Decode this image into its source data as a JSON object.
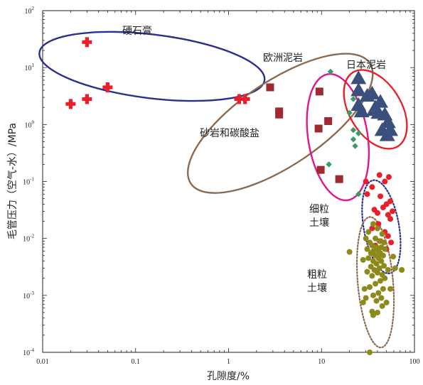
{
  "chart_data": {
    "type": "scatter",
    "title": "",
    "xlabel": "孔隙度/%",
    "ylabel": "毛管压力（空气-水）/MPa",
    "xscale": "log",
    "yscale": "log",
    "xlim": [
      0.01,
      100
    ],
    "ylim": [
      0.0001,
      100
    ],
    "x_tick_labels": [
      "0.01",
      "0.1",
      "1",
      "10",
      "100"
    ],
    "y_tick_labels": [
      {
        "base": "10",
        "exp": "2"
      },
      {
        "base": "10",
        "exp": "1"
      },
      {
        "base": "10",
        "exp": "0"
      },
      {
        "base": "10",
        "exp": "-1"
      },
      {
        "base": "10",
        "exp": "-2"
      },
      {
        "base": "10",
        "exp": "-3"
      },
      {
        "base": "10",
        "exp": "-4"
      }
    ],
    "legend": "none",
    "series": [
      {
        "name": "硬石膏",
        "label_lines": [
          "硬石膏"
        ],
        "marker": "cross",
        "color": "#e8202a",
        "points": [
          [
            0.02,
            2.3
          ],
          [
            0.03,
            28
          ],
          [
            0.03,
            2.8
          ],
          [
            0.05,
            4.5
          ],
          [
            1.3,
            2.8
          ],
          [
            1.5,
            2.8
          ]
        ],
        "ellipse": {
          "cx": 0.15,
          "cy": 10.5,
          "rx_dec": 1.22,
          "ry_dec": 0.56,
          "angle": 7,
          "color": "#2b2f8e",
          "dash": "solid"
        }
      },
      {
        "name": "砂岩和碳酸盐",
        "label_lines": [
          "砂岩和碳酸盐"
        ],
        "marker": "square",
        "color": "#a02a32",
        "points": [
          [
            2.8,
            4.5
          ],
          [
            3.5,
            1.7
          ],
          [
            3.5,
            1.5
          ],
          [
            9.5,
            3.8
          ],
          [
            9.3,
            0.85
          ],
          [
            11.8,
            1.15
          ],
          [
            9.8,
            0.16
          ],
          [
            15.5,
            0.11
          ]
        ],
        "ellipse": {
          "cx": 3.6,
          "cy": 1.05,
          "rx_dec": 1.16,
          "ry_dec": 0.74,
          "angle": -34,
          "color": "#8b6a4e",
          "dash": "solid"
        }
      },
      {
        "name": "欧洲泥岩",
        "label_lines": [
          "欧洲泥岩"
        ],
        "marker": "diamond",
        "color": "#3a9a6a",
        "points": [
          [
            12.5,
            8.5
          ],
          [
            22,
            2.8
          ],
          [
            20,
            1.6
          ],
          [
            22,
            0.8
          ],
          [
            25,
            0.7
          ],
          [
            22,
            0.55
          ],
          [
            23,
            0.42
          ],
          [
            12,
            0.2
          ],
          [
            25,
            0.06
          ]
        ],
        "ellipse": {
          "cx": 15,
          "cy": 0.6,
          "rx_dec": 0.32,
          "ry_dec": 1.12,
          "angle": -9,
          "color": "#e0168c",
          "dash": "solid"
        }
      },
      {
        "name": "日本泥岩",
        "label_lines": [
          "日本泥岩"
        ],
        "marker": "triangle",
        "color": "#3b4f7c",
        "points": [
          [
            25,
            6.5
          ],
          [
            25,
            4
          ],
          [
            31,
            3.2
          ],
          [
            35,
            3.5
          ],
          [
            43,
            2.5
          ],
          [
            38,
            2.0
          ],
          [
            25,
            2.2
          ],
          [
            27,
            1.7
          ],
          [
            37,
            1.8
          ],
          [
            41,
            1.6
          ],
          [
            48,
            1.5
          ],
          [
            52,
            1.1
          ],
          [
            45,
            0.8
          ],
          [
            51,
            0.65
          ],
          [
            55,
            0.8
          ]
        ],
        "ellipse": {
          "cx": 38,
          "cy": 1.85,
          "rx_dec": 0.28,
          "ry_dec": 0.76,
          "angle": -31,
          "color": "#e8202a",
          "dash": "solid"
        }
      },
      {
        "name": "细粒土壤",
        "label_lines": [
          "细粒",
          "土壤"
        ],
        "marker": "circle",
        "color": "#e8202a",
        "points": [
          [
            30,
            0.1
          ],
          [
            35,
            0.08
          ],
          [
            31,
            0.06
          ],
          [
            42,
            0.13
          ],
          [
            48,
            0.1
          ],
          [
            53,
            0.12
          ],
          [
            43,
            0.055
          ],
          [
            50,
            0.04
          ],
          [
            55,
            0.045
          ],
          [
            46,
            0.035
          ],
          [
            37,
            0.032
          ],
          [
            40,
            0.028
          ],
          [
            52,
            0.026
          ],
          [
            58,
            0.03
          ],
          [
            55,
            0.022
          ],
          [
            41,
            0.018
          ],
          [
            35,
            0.015
          ],
          [
            48,
            0.013
          ],
          [
            52,
            0.011
          ],
          [
            43,
            0.009
          ],
          [
            56,
            0.0085
          ],
          [
            38,
            0.0075
          ],
          [
            50,
            0.0065
          ]
        ],
        "ellipse": {
          "cx": 44,
          "cy": 0.016,
          "rx_dec": 0.19,
          "ry_dec": 0.83,
          "angle": -10,
          "color": "#2b2f8e",
          "dash": "dotted"
        }
      },
      {
        "name": "粗粒土壤",
        "label_lines": [
          "粗粒",
          "土壤"
        ],
        "marker": "circle",
        "color": "#8b8a1b",
        "points": [
          [
            36,
            0.018
          ],
          [
            32,
            0.013
          ],
          [
            40,
            0.015
          ],
          [
            45,
            0.012
          ],
          [
            30,
            0.01
          ],
          [
            38,
            0.01
          ],
          [
            42,
            0.009
          ],
          [
            33,
            0.0085
          ],
          [
            47,
            0.0085
          ],
          [
            35,
            0.0075
          ],
          [
            39,
            0.007
          ],
          [
            44,
            0.007
          ],
          [
            31,
            0.0065
          ],
          [
            48,
            0.0065
          ],
          [
            36,
            0.006
          ],
          [
            41,
            0.006
          ],
          [
            34,
            0.0055
          ],
          [
            43,
            0.0055
          ],
          [
            38,
            0.005
          ],
          [
            46,
            0.005
          ],
          [
            20,
            0.0058
          ],
          [
            59,
            0.0048
          ],
          [
            32,
            0.0045
          ],
          [
            41,
            0.0045
          ],
          [
            36,
            0.004
          ],
          [
            44,
            0.004
          ],
          [
            39,
            0.0036
          ],
          [
            34,
            0.0032
          ],
          [
            28,
            0.0042
          ],
          [
            47,
            0.0033
          ],
          [
            42,
            0.003
          ],
          [
            37,
            0.0028
          ],
          [
            31,
            0.0026
          ],
          [
            52,
            0.0028
          ],
          [
            62,
            0.003
          ],
          [
            73,
            0.0028
          ],
          [
            40,
            0.0025
          ],
          [
            45,
            0.0023
          ],
          [
            35,
            0.0022
          ],
          [
            48,
            0.002
          ],
          [
            43,
            0.0018
          ],
          [
            38,
            0.0016
          ],
          [
            33,
            0.0014
          ],
          [
            29,
            0.0013
          ],
          [
            46,
            0.0013
          ],
          [
            55,
            0.0013
          ],
          [
            41,
            0.0011
          ],
          [
            36,
            0.001
          ],
          [
            30,
            0.0009
          ],
          [
            44,
            0.0009
          ],
          [
            39,
            0.0008
          ],
          [
            28,
            0.00075
          ],
          [
            50,
            0.00075
          ],
          [
            45,
            0.00065
          ],
          [
            35,
            0.00052
          ],
          [
            40,
            0.0005
          ],
          [
            36,
            0.00045
          ],
          [
            33,
            0.0001
          ]
        ],
        "ellipse": {
          "cx": 38,
          "cy": 0.0017,
          "rx_dec": 0.19,
          "ry_dec": 1.15,
          "angle": -5,
          "color": "#8b6a4e",
          "dash": "dotted"
        }
      }
    ]
  }
}
